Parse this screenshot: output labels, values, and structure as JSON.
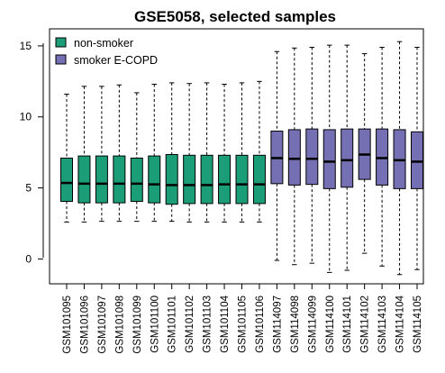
{
  "chart_data": {
    "type": "boxplot",
    "title": "GSE5058, selected samples",
    "xlabel": "",
    "ylabel": "",
    "ylim": [
      -1.75,
      16.2
    ],
    "yticks": [
      0,
      5,
      10,
      15
    ],
    "ytick_labels": [
      "0",
      "5",
      "10",
      "15"
    ],
    "legend": {
      "placement": "top-left",
      "entries": [
        {
          "label": "non-smoker",
          "color": "#1b9e77"
        },
        {
          "label": "smoker E-COPD",
          "color": "#7570b3"
        }
      ]
    },
    "grid": false,
    "categories": [
      "GSM101095",
      "GSM101096",
      "GSM101097",
      "GSM101098",
      "GSM101099",
      "GSM101100",
      "GSM101101",
      "GSM101102",
      "GSM101103",
      "GSM101104",
      "GSM101105",
      "GSM101106",
      "GSM114097",
      "GSM114098",
      "GSM114099",
      "GSM114100",
      "GSM114101",
      "GSM114102",
      "GSM114103",
      "GSM114104",
      "GSM114105"
    ],
    "series": [
      {
        "name": "non-smoker",
        "color": "#1b9e77",
        "boxes": [
          {
            "min": 2.6,
            "q1": 4.05,
            "median": 5.35,
            "q3": 7.1,
            "max": 11.6
          },
          {
            "min": 2.6,
            "q1": 3.95,
            "median": 5.3,
            "q3": 7.25,
            "max": 12.15
          },
          {
            "min": 2.65,
            "q1": 3.95,
            "median": 5.3,
            "q3": 7.25,
            "max": 12.15
          },
          {
            "min": 2.65,
            "q1": 3.95,
            "median": 5.3,
            "q3": 7.25,
            "max": 12.25
          },
          {
            "min": 2.65,
            "q1": 4.05,
            "median": 5.3,
            "q3": 7.1,
            "max": 11.7
          },
          {
            "min": 2.65,
            "q1": 3.95,
            "median": 5.25,
            "q3": 7.25,
            "max": 12.3
          },
          {
            "min": 2.65,
            "q1": 3.85,
            "median": 5.2,
            "q3": 7.35,
            "max": 12.4
          },
          {
            "min": 2.6,
            "q1": 3.9,
            "median": 5.2,
            "q3": 7.3,
            "max": 12.35
          },
          {
            "min": 2.6,
            "q1": 3.9,
            "median": 5.2,
            "q3": 7.3,
            "max": 12.4
          },
          {
            "min": 2.6,
            "q1": 3.9,
            "median": 5.25,
            "q3": 7.3,
            "max": 12.3
          },
          {
            "min": 2.6,
            "q1": 3.9,
            "median": 5.25,
            "q3": 7.3,
            "max": 12.4
          },
          {
            "min": 2.6,
            "q1": 3.9,
            "median": 5.25,
            "q3": 7.3,
            "max": 12.5
          }
        ]
      },
      {
        "name": "smoker E-COPD",
        "color": "#7570b3",
        "boxes": [
          {
            "min": -0.1,
            "q1": 5.3,
            "median": 7.1,
            "q3": 9.0,
            "max": 14.6
          },
          {
            "min": -0.4,
            "q1": 5.2,
            "median": 7.05,
            "q3": 9.1,
            "max": 14.85
          },
          {
            "min": -0.3,
            "q1": 5.25,
            "median": 7.05,
            "q3": 9.15,
            "max": 14.9
          },
          {
            "min": -0.95,
            "q1": 4.95,
            "median": 6.85,
            "q3": 9.1,
            "max": 15.05
          },
          {
            "min": -0.8,
            "q1": 5.05,
            "median": 6.95,
            "q3": 9.15,
            "max": 15.05
          },
          {
            "min": 0.4,
            "q1": 5.6,
            "median": 7.35,
            "q3": 9.15,
            "max": 14.45
          },
          {
            "min": -0.5,
            "q1": 5.2,
            "median": 7.1,
            "q3": 9.15,
            "max": 14.9
          },
          {
            "min": -1.1,
            "q1": 4.95,
            "median": 6.95,
            "q3": 9.1,
            "max": 15.3
          },
          {
            "min": -0.75,
            "q1": 4.95,
            "median": 6.85,
            "q3": 8.95,
            "max": 14.9
          }
        ]
      }
    ]
  }
}
